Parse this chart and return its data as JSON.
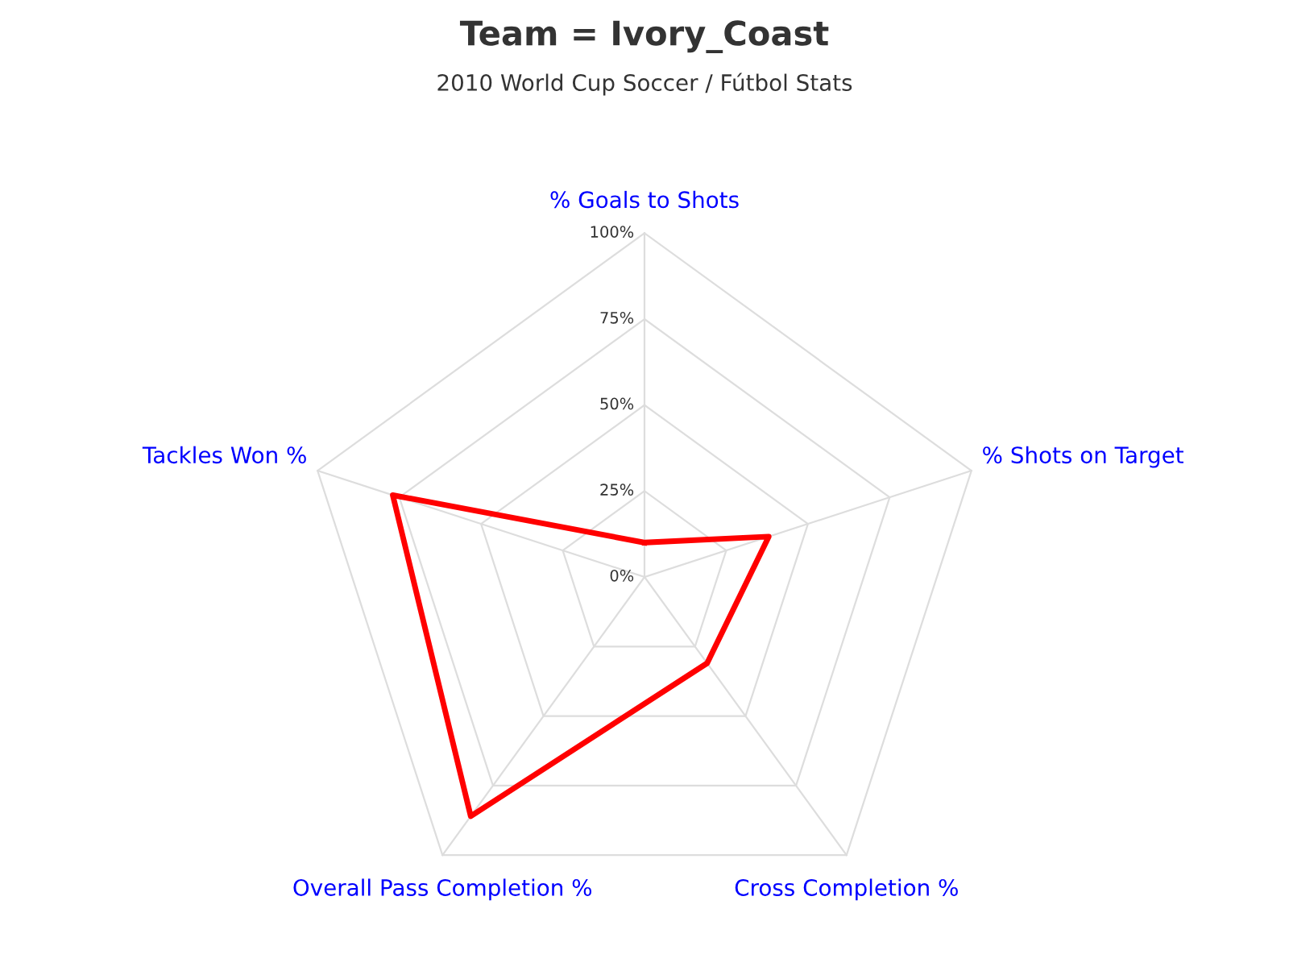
{
  "chart_data": {
    "type": "radar",
    "title": "Team = Ivory_Coast",
    "subtitle": "2010 World Cup Soccer / Fútbol Stats",
    "categories": [
      "% Goals to Shots",
      "% Shots on Target",
      "Cross Completion %",
      "Overall Pass Completion %",
      "Tackles Won %"
    ],
    "series": [
      {
        "color": "#ff0000",
        "values": [
          10,
          38,
          31,
          86,
          77
        ]
      }
    ],
    "ylim": [
      0,
      100
    ],
    "yticks": [
      {
        "value": 0,
        "label": "0%"
      },
      {
        "value": 25,
        "label": "25%"
      },
      {
        "value": 50,
        "label": "50%"
      },
      {
        "value": 75,
        "label": "75%"
      },
      {
        "value": 100,
        "label": "100%"
      }
    ],
    "grid": true,
    "marker": "none",
    "line_style": "solid"
  }
}
